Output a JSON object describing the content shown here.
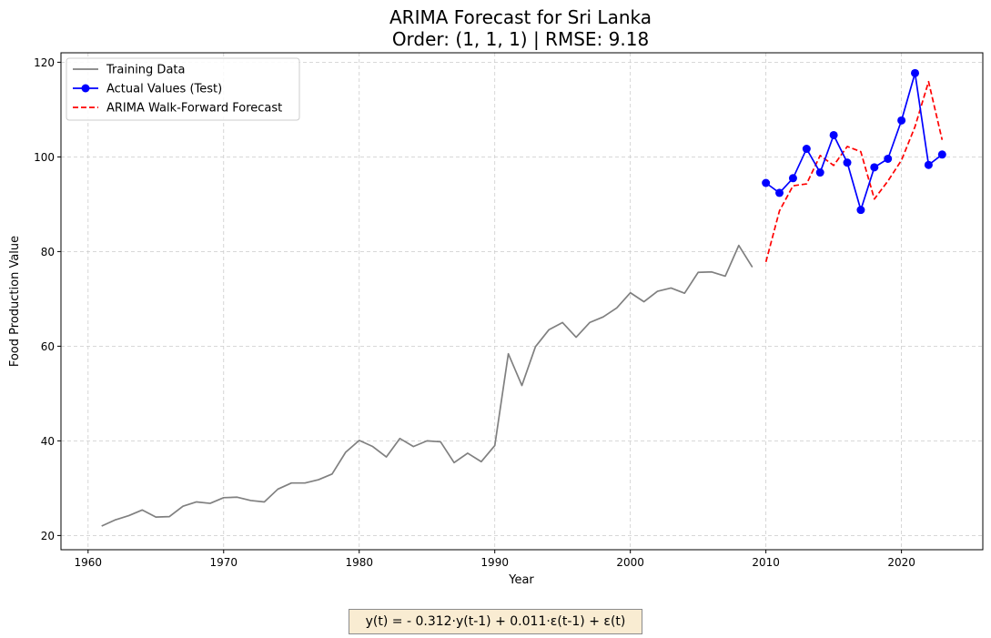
{
  "chart_data": {
    "type": "line",
    "title": [
      "ARIMA Forecast for Sri Lanka",
      "Order: (1, 1, 1) | RMSE: 9.18"
    ],
    "xlabel": "Year",
    "ylabel": "Food Production Value",
    "xlim": [
      1958,
      2026
    ],
    "ylim": [
      17,
      122
    ],
    "xticks": [
      1960,
      1970,
      1980,
      1990,
      2000,
      2010,
      2020
    ],
    "yticks": [
      20,
      40,
      60,
      80,
      100,
      120
    ],
    "grid": true,
    "legend_position": "upper-left",
    "series": [
      {
        "name": "Training Data",
        "color": "#808080",
        "style": "solid",
        "marker": "none",
        "x": [
          1961,
          1962,
          1963,
          1964,
          1965,
          1966,
          1967,
          1968,
          1969,
          1970,
          1971,
          1972,
          1973,
          1974,
          1975,
          1976,
          1977,
          1978,
          1979,
          1980,
          1981,
          1982,
          1983,
          1984,
          1985,
          1986,
          1987,
          1988,
          1989,
          1990,
          1991,
          1992,
          1993,
          1994,
          1995,
          1996,
          1997,
          1998,
          1999,
          2000,
          2001,
          2002,
          2003,
          2004,
          2005,
          2006,
          2007,
          2008,
          2009
        ],
        "y": [
          22.0,
          23.3,
          24.2,
          25.4,
          23.9,
          24.0,
          26.2,
          27.1,
          26.8,
          28.0,
          28.1,
          27.4,
          27.1,
          29.8,
          31.1,
          31.1,
          31.8,
          33.0,
          37.6,
          40.1,
          38.8,
          36.6,
          40.5,
          38.8,
          40.0,
          39.8,
          35.4,
          37.4,
          35.6,
          39.0,
          58.4,
          51.7,
          59.9,
          63.5,
          65.0,
          61.9,
          65.0,
          66.2,
          68.1,
          71.3,
          69.4,
          71.6,
          72.3,
          71.2,
          75.6,
          75.7,
          74.8,
          81.3,
          76.7
        ]
      },
      {
        "name": "Actual Values (Test)",
        "color": "#0000ff",
        "style": "solid",
        "marker": "circle",
        "x": [
          2010,
          2011,
          2012,
          2013,
          2014,
          2015,
          2016,
          2017,
          2018,
          2019,
          2020,
          2021,
          2022,
          2023
        ],
        "y": [
          94.5,
          92.4,
          95.5,
          101.7,
          96.7,
          104.6,
          98.8,
          88.8,
          97.8,
          99.6,
          107.7,
          117.7,
          98.3,
          100.5
        ]
      },
      {
        "name": "ARIMA Walk-Forward Forecast",
        "color": "#ff0000",
        "style": "dashed",
        "marker": "none",
        "x": [
          2010,
          2011,
          2012,
          2013,
          2014,
          2015,
          2016,
          2017,
          2018,
          2019,
          2020,
          2021,
          2022,
          2023
        ],
        "y": [
          77.8,
          88.6,
          93.9,
          94.3,
          100.3,
          98.2,
          102.2,
          101.1,
          91.1,
          94.9,
          99.3,
          106.4,
          115.9,
          103.6
        ]
      }
    ]
  },
  "formula": "y(t) = - 0.312·y(t-1) + 0.011·ε(t-1) + ε(t)",
  "formula_bg": "#f9ecd2"
}
